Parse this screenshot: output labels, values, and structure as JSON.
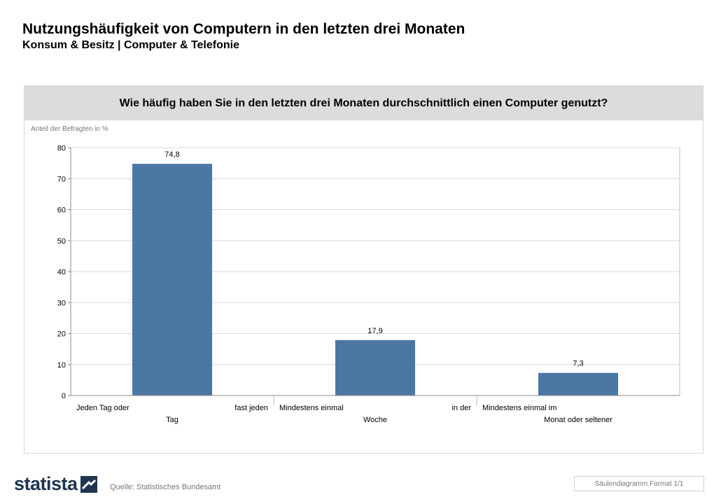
{
  "header": {
    "title": "Nutzungshäufigkeit von Computern in den letzten drei Monaten",
    "subtitle": "Konsum & Besitz | Computer & Telefonie"
  },
  "footer": {
    "logo": "statista",
    "source": "Quelle: Statistisches Bundesamt",
    "format": "Säulendiagramm Format 1/1"
  },
  "colors": {
    "bar": "#4a78a3",
    "question_bg": "#dcdcdc",
    "logo": "#1f3550"
  },
  "chart_data": {
    "type": "bar",
    "title": "Wie häufig haben Sie in den letzten drei Monaten durchschnittlich einen Computer genutzt?",
    "ylabel": "Anteil der Befragten in %",
    "xlabel": "",
    "categories": [
      "Jeden Tag oder fast jeden Tag",
      "Mindestens einmal in der Woche",
      "Mindestens einmal im Monat oder seltener"
    ],
    "category_label_lines": [
      [
        "Jeden Tag oder",
        "fast jeden",
        "Tag"
      ],
      [
        "Mindestens einmal",
        "in der",
        "Woche"
      ],
      [
        "Mindestens einmal im",
        "Monat oder seltener"
      ]
    ],
    "values": [
      74.8,
      17.9,
      7.3
    ],
    "value_labels": [
      "74,8",
      "17,9",
      "7,3"
    ],
    "ylim": [
      0,
      80
    ],
    "yticks": [
      0,
      10,
      20,
      30,
      40,
      50,
      60,
      70,
      80
    ],
    "grid": true,
    "legend": "none"
  }
}
